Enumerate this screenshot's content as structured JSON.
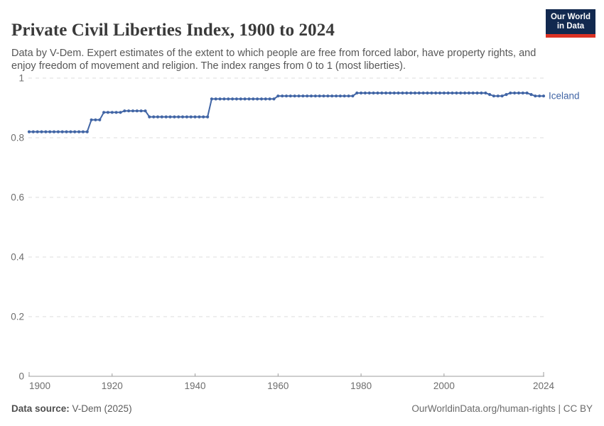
{
  "header": {
    "title": "Private Civil Liberties Index, 1900 to 2024",
    "subtitle": "Data by V-Dem. Expert estimates of the extent to which people are free from forced labor, have property rights, and enjoy freedom of movement and religion. The index ranges from 0 to 1 (most liberties).",
    "logo": {
      "line1": "Our World",
      "line2": "in Data",
      "bg_color": "#12294f",
      "bar_color": "#dc3224",
      "text_color": "#ffffff"
    }
  },
  "chart_data": {
    "type": "line",
    "title": "Private Civil Liberties Index, 1900 to 2024",
    "entity": "Iceland",
    "xlabel": "",
    "ylabel": "",
    "xlim": [
      1900,
      2024
    ],
    "ylim": [
      0,
      1
    ],
    "x_ticks": [
      1900,
      1920,
      1940,
      1960,
      1980,
      2000,
      2024
    ],
    "y_ticks": [
      0,
      0.2,
      0.4,
      0.6,
      0.8,
      1
    ],
    "grid": "horizontal-dashed",
    "legend_position": "end-of-line-label",
    "series": [
      {
        "name": "Iceland",
        "color": "#4165a5",
        "segments_note": "each segment is [first_year, last_year, value]; one data point per year",
        "segments": [
          [
            1900,
            1914,
            0.82
          ],
          [
            1915,
            1917,
            0.86
          ],
          [
            1918,
            1922,
            0.885
          ],
          [
            1923,
            1928,
            0.89
          ],
          [
            1929,
            1943,
            0.87
          ],
          [
            1944,
            1959,
            0.93
          ],
          [
            1960,
            1978,
            0.94
          ],
          [
            1979,
            2010,
            0.95
          ],
          [
            2011,
            2011,
            0.945
          ],
          [
            2012,
            2014,
            0.94
          ],
          [
            2015,
            2015,
            0.945
          ],
          [
            2016,
            2020,
            0.95
          ],
          [
            2021,
            2021,
            0.945
          ],
          [
            2022,
            2024,
            0.94
          ]
        ]
      }
    ],
    "axis_colors": {
      "grid": "#dcdcdc",
      "axis": "#9c9c9c",
      "tick_text": "#6e6e6e"
    }
  },
  "footer": {
    "source_label": "Data source:",
    "source_value": " V-Dem (2025)",
    "right": "OurWorldinData.org/human-rights | CC BY"
  }
}
